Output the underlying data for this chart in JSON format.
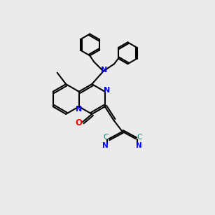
{
  "bg_color": "#ebebeb",
  "bond_color": "#000000",
  "n_color": "#0000ff",
  "o_color": "#ff0000",
  "c_color": "#008b8b",
  "lw": 1.5,
  "ring_r": 0.75,
  "figsize": [
    3.0,
    3.0
  ],
  "dpi": 100
}
